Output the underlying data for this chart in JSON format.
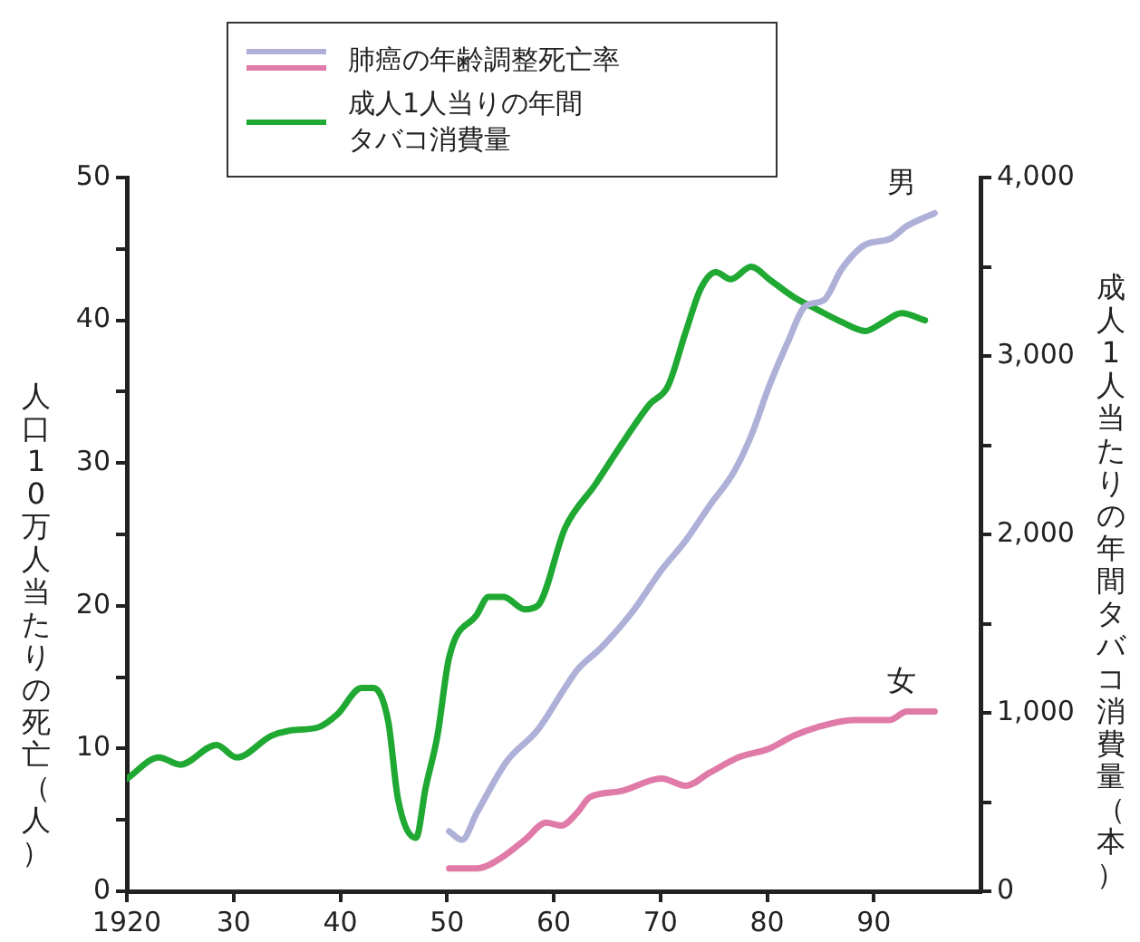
{
  "chart_data": {
    "type": "line",
    "legend_title": "肺癌の年齢調整死亡率",
    "ylabel": "人口10万人当たりの死亡（人）",
    "y2label": "成人1人当たりの年間タバコ消費量（本）",
    "xlim": [
      1920,
      2000
    ],
    "xticks": [
      {
        "value": 1920,
        "label": "1920"
      },
      {
        "value": 1930,
        "label": "30"
      },
      {
        "value": 1940,
        "label": "40"
      },
      {
        "value": 1950,
        "label": "50"
      },
      {
        "value": 1960,
        "label": "60"
      },
      {
        "value": 1970,
        "label": "70"
      },
      {
        "value": 1980,
        "label": "80"
      },
      {
        "value": 1990,
        "label": "90"
      }
    ],
    "ylim": [
      0,
      50
    ],
    "yticks": [
      0,
      {
        "value": 5,
        "label": null
      },
      10,
      {
        "value": 15,
        "label": null
      },
      20,
      {
        "value": 25,
        "label": null
      },
      30,
      {
        "value": 35,
        "label": null
      },
      40,
      {
        "value": 45,
        "label": null
      },
      50
    ],
    "y2lim": [
      0,
      4000
    ],
    "y2ticks": [
      0,
      {
        "value": 500,
        "label": null
      },
      {
        "value": 1000,
        "label": "1,000"
      },
      {
        "value": 1500,
        "label": null
      },
      {
        "value": 2000,
        "label": "2,000"
      },
      {
        "value": 2500,
        "label": null
      },
      {
        "value": 3000,
        "label": "3,000"
      },
      {
        "value": 3500,
        "label": null
      },
      {
        "value": 4000,
        "label": "4,000"
      }
    ],
    "grid": false,
    "legend": "top",
    "marker": "none",
    "line_style": "solid",
    "series": [
      {
        "name": "男",
        "type": "line",
        "color": "#aeb0d8",
        "axis": "y",
        "x": [
          1950.2,
          1951.4,
          1952.8,
          1955.6,
          1958.5,
          1961.1,
          1962.2,
          1964.5,
          1967.3,
          1970.1,
          1972.4,
          1974.6,
          1976.9,
          1978.5,
          1980.2,
          1981.9,
          1983.6,
          1985.3,
          1987,
          1989.2,
          1991.5,
          1993.1,
          1995.7
        ],
        "values": [
          4.2,
          3.6,
          5.5,
          9.1,
          11.3,
          14.3,
          15.5,
          17.1,
          19.5,
          22.5,
          24.6,
          27,
          29.4,
          31.9,
          35.4,
          38.4,
          41,
          41.4,
          43.6,
          45.3,
          45.7,
          46.6,
          47.5
        ]
      },
      {
        "name": "女",
        "type": "line",
        "color": "#e07aa8",
        "axis": "y",
        "x": [
          1950.2,
          1952.8,
          1955,
          1957.3,
          1959.3,
          1960.7,
          1962.2,
          1963.4,
          1966.2,
          1970.1,
          1972.4,
          1974.6,
          1977.4,
          1980.2,
          1982.5,
          1984.7,
          1988.1,
          1991.5,
          1993.1,
          1995.7
        ],
        "values": [
          1.6,
          1.6,
          2.3,
          3.6,
          4.8,
          4.6,
          5.5,
          6.6,
          7,
          7.9,
          7.4,
          8.3,
          9.4,
          10,
          10.9,
          11.5,
          12,
          12,
          12.6,
          12.6
        ]
      },
      {
        "name": "成人1人当りの年間タバコ消費量",
        "type": "line",
        "color": "#1fa832",
        "axis": "y2",
        "x": [
          1920,
          1923,
          1925,
          1928.4,
          1930.3,
          1933.5,
          1935.2,
          1938,
          1939.7,
          1942,
          1943.1,
          1944.5,
          1945.4,
          1947.1,
          1948,
          1949.1,
          1950.2,
          1952.8,
          1953.9,
          1955.3,
          1957.3,
          1958.5,
          1961.1,
          1963.9,
          1966.2,
          1969,
          1970.7,
          1972.4,
          1973.8,
          1975.2,
          1976.6,
          1978.5,
          1980.2,
          1982.5,
          1984.7,
          1987,
          1989.2,
          1990.9,
          1992.6,
          1994.8
        ],
        "values": [
          630,
          750,
          710,
          820,
          750,
          870,
          900,
          920,
          990,
          1140,
          1140,
          950,
          520,
          300,
          580,
          870,
          1310,
          1550,
          1650,
          1650,
          1580,
          1600,
          2040,
          2280,
          2490,
          2730,
          2830,
          3140,
          3380,
          3470,
          3430,
          3500,
          3430,
          3330,
          3260,
          3190,
          3140,
          3190,
          3240,
          3200
        ]
      }
    ]
  }
}
